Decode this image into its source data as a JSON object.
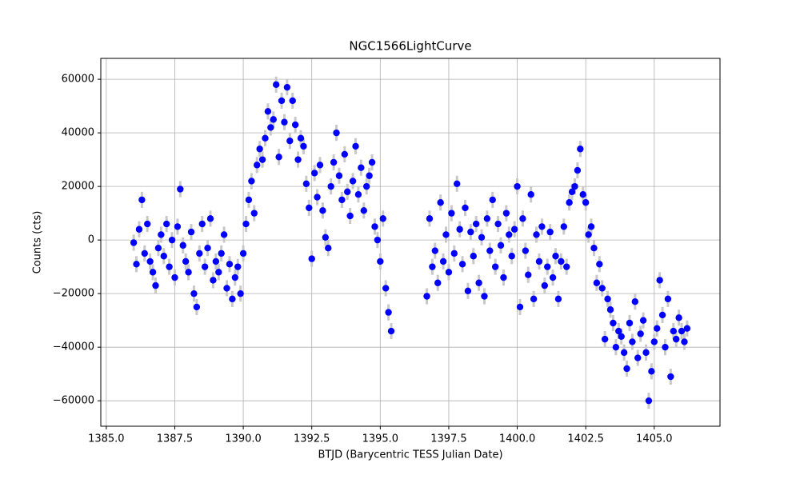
{
  "chart_data": {
    "type": "errorbar-scatter",
    "title": "NGC1566LightCurve",
    "x_label": "BTJD (Barycentric TESS Julian Date)",
    "y_label": "Counts (cts)",
    "xlim": [
      1384.8,
      1407.4
    ],
    "ylim": [
      -69500,
      67800
    ],
    "grid": true,
    "xticks": [
      {
        "value": 1385,
        "label": "1385.0"
      },
      {
        "value": 1387.5,
        "label": "1387.5"
      },
      {
        "value": 1390,
        "label": "1390.0"
      },
      {
        "value": 1392.5,
        "label": "1392.5"
      },
      {
        "value": 1395,
        "label": "1395.0"
      },
      {
        "value": 1397.5,
        "label": "1397.5"
      },
      {
        "value": 1400,
        "label": "1400.0"
      },
      {
        "value": 1402.5,
        "label": "1402.5"
      },
      {
        "value": 1405,
        "label": "1405.0"
      }
    ],
    "yticks": [
      {
        "value": -60000,
        "label": "−60000"
      },
      {
        "value": -40000,
        "label": "−40000"
      },
      {
        "value": -20000,
        "label": "−20000"
      },
      0,
      20000,
      40000,
      60000
    ],
    "series": [
      {
        "color": "#0000ff",
        "error_color": "#c8c8c8",
        "yerr": 3000,
        "x": [
          1386.0,
          1386.1,
          1386.2,
          1386.3,
          1386.4,
          1386.5,
          1386.6,
          1386.7,
          1386.8,
          1386.9,
          1387.0,
          1387.1,
          1387.2,
          1387.3,
          1387.4,
          1387.5,
          1387.6,
          1387.7,
          1387.8,
          1387.9,
          1388.0,
          1388.1,
          1388.2,
          1388.3,
          1388.4,
          1388.5,
          1388.6,
          1388.7,
          1388.8,
          1388.9,
          1389.0,
          1389.1,
          1389.2,
          1389.3,
          1389.4,
          1389.5,
          1389.6,
          1389.7,
          1389.8,
          1389.9,
          1390.0,
          1390.1,
          1390.2,
          1390.3,
          1390.4,
          1390.5,
          1390.6,
          1390.7,
          1390.8,
          1390.9,
          1391.0,
          1391.1,
          1391.2,
          1391.3,
          1391.4,
          1391.5,
          1391.6,
          1391.7,
          1391.8,
          1391.9,
          1392.0,
          1392.1,
          1392.2,
          1392.3,
          1392.4,
          1392.5,
          1392.6,
          1392.7,
          1392.8,
          1392.9,
          1393.0,
          1393.1,
          1393.2,
          1393.3,
          1393.4,
          1393.5,
          1393.6,
          1393.7,
          1393.8,
          1393.9,
          1394.0,
          1394.1,
          1394.2,
          1394.3,
          1394.4,
          1394.5,
          1394.6,
          1394.7,
          1394.8,
          1394.9,
          1395.0,
          1395.1,
          1395.2,
          1395.3,
          1395.4,
          1396.7,
          1396.8,
          1396.9,
          1397.0,
          1397.1,
          1397.2,
          1397.3,
          1397.4,
          1397.5,
          1397.6,
          1397.7,
          1397.8,
          1397.9,
          1398.0,
          1398.1,
          1398.2,
          1398.3,
          1398.4,
          1398.5,
          1398.6,
          1398.7,
          1398.8,
          1398.9,
          1399.0,
          1399.1,
          1399.2,
          1399.3,
          1399.4,
          1399.5,
          1399.6,
          1399.7,
          1399.8,
          1399.9,
          1400.0,
          1400.1,
          1400.2,
          1400.3,
          1400.4,
          1400.5,
          1400.6,
          1400.7,
          1400.8,
          1400.9,
          1401.0,
          1401.1,
          1401.2,
          1401.3,
          1401.4,
          1401.5,
          1401.6,
          1401.7,
          1401.8,
          1401.9,
          1402.0,
          1402.1,
          1402.2,
          1402.3,
          1402.4,
          1402.5,
          1402.6,
          1402.7,
          1402.8,
          1402.9,
          1403.0,
          1403.1,
          1403.2,
          1403.3,
          1403.4,
          1403.5,
          1403.6,
          1403.7,
          1403.8,
          1403.9,
          1404.0,
          1404.1,
          1404.2,
          1404.3,
          1404.4,
          1404.5,
          1404.6,
          1404.7,
          1404.8,
          1404.9,
          1405.0,
          1405.1,
          1405.2,
          1405.3,
          1405.4,
          1405.5,
          1405.6,
          1405.7,
          1405.8,
          1405.9,
          1406.0,
          1406.1,
          1406.2
        ],
        "values": [
          -1000,
          -9000,
          4000,
          15000,
          -5000,
          6000,
          -8000,
          -12000,
          -17000,
          -3000,
          2000,
          -6000,
          6000,
          -10000,
          0,
          -14000,
          5000,
          19000,
          -2000,
          -8000,
          -12000,
          3000,
          -20000,
          -25000,
          -5000,
          6000,
          -10000,
          -3000,
          8000,
          -15000,
          -8000,
          -12000,
          -5000,
          2000,
          -18000,
          -9000,
          -22000,
          -14000,
          -10000,
          -20000,
          -5000,
          6000,
          15000,
          22000,
          10000,
          28000,
          34000,
          30000,
          38000,
          48000,
          42000,
          45000,
          58000,
          31000,
          52000,
          44000,
          57000,
          37000,
          52000,
          43000,
          30000,
          38000,
          35000,
          21000,
          12000,
          -7000,
          25000,
          16000,
          28000,
          11000,
          1000,
          -3000,
          20000,
          29000,
          40000,
          24000,
          15000,
          32000,
          18000,
          9000,
          22000,
          35000,
          17000,
          27000,
          11000,
          20000,
          24000,
          29000,
          5000,
          0,
          -8000,
          8000,
          -18000,
          -27000,
          -34000,
          -21000,
          8000,
          -10000,
          -4000,
          -16000,
          14000,
          -8000,
          2000,
          -12000,
          10000,
          -5000,
          21000,
          4000,
          -9000,
          12000,
          -19000,
          3000,
          -6000,
          6000,
          -16000,
          1000,
          -21000,
          8000,
          -4000,
          15000,
          -10000,
          6000,
          -2000,
          -14000,
          10000,
          2000,
          -6000,
          4000,
          20000,
          -25000,
          8000,
          -4000,
          -13000,
          17000,
          -22000,
          2000,
          -8000,
          5000,
          -17000,
          -10000,
          3000,
          -14000,
          -6000,
          -22000,
          -8000,
          5000,
          -10000,
          14000,
          18000,
          20000,
          26000,
          34000,
          17000,
          14000,
          2000,
          5000,
          -3000,
          -16000,
          -9000,
          -18000,
          -37000,
          -22000,
          -26000,
          -31000,
          -40000,
          -34000,
          -36000,
          -42000,
          -48000,
          -31000,
          -38000,
          -23000,
          -44000,
          -35000,
          -30000,
          -42000,
          -60000,
          -49000,
          -38000,
          -33000,
          -15000,
          -28000,
          -40000,
          -22000,
          -51000,
          -34000,
          -37000,
          -29000,
          -34000,
          -38000,
          -33000
        ]
      }
    ]
  }
}
